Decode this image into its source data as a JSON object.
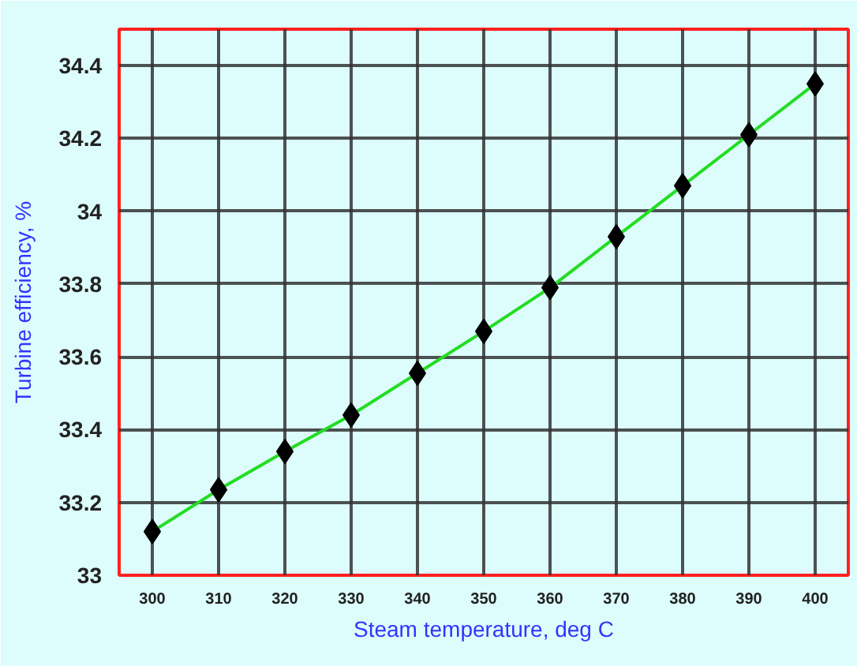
{
  "chart_data": {
    "type": "line",
    "xlabel": "Steam temperature, deg C",
    "ylabel": "Turbine efficiency, %",
    "x": [
      300,
      310,
      320,
      330,
      340,
      350,
      360,
      370,
      380,
      390,
      400
    ],
    "series": [
      {
        "color": "#22dd22",
        "values": [
          33.12,
          33.235,
          33.34,
          33.44,
          33.555,
          33.67,
          33.79,
          33.93,
          34.07,
          34.21,
          34.35
        ]
      }
    ],
    "xlim": [
      295,
      405
    ],
    "ylim": [
      33,
      34.5
    ],
    "xticks": [
      300,
      310,
      320,
      330,
      340,
      350,
      360,
      370,
      380,
      390,
      400
    ],
    "yticks": [
      33,
      33.2,
      33.4,
      33.6,
      33.8,
      34,
      34.2,
      34.4
    ],
    "grid": true,
    "marker": "diamond",
    "line_style": "solid"
  }
}
